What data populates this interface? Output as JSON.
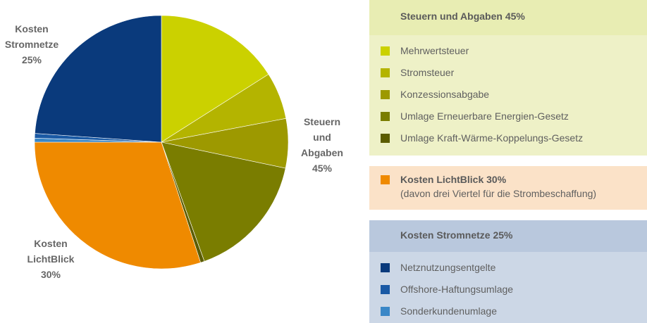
{
  "chart_data": {
    "type": "pie",
    "slices": [
      {
        "group": "tax",
        "value": 16.0,
        "color": "#cbd100"
      },
      {
        "group": "tax",
        "value": 6.0,
        "color": "#b4b400"
      },
      {
        "group": "tax",
        "value": 6.3,
        "color": "#9d9900"
      },
      {
        "group": "tax",
        "value": 16.2,
        "color": "#7a7d00"
      },
      {
        "group": "tax",
        "value": 0.5,
        "color": "#5b5c00"
      },
      {
        "group": "lb",
        "value": 30.0,
        "color": "#ef8a00"
      },
      {
        "group": "net",
        "value": 0.5,
        "color": "#3a87c7"
      },
      {
        "group": "net",
        "value": 0.6,
        "color": "#1a5aa5"
      },
      {
        "group": "net",
        "value": 23.9,
        "color": "#0a3a7c"
      }
    ],
    "labels": {
      "tax": "Steuern\nund\nAbgaben\n45%",
      "lb": "Kosten\nLichtBlick\n30%",
      "net": "Kosten\nStromnetze\n25%"
    }
  },
  "legend": {
    "tax": {
      "header": "Steuern und Abgaben 45%",
      "items": [
        {
          "label": "Mehrwertsteuer",
          "color": "#cbd100"
        },
        {
          "label": "Stromsteuer",
          "color": "#b4b400"
        },
        {
          "label": "Konzessionsabgabe",
          "color": "#9d9900"
        },
        {
          "label": "Umlage Erneuerbare Energien-Gesetz",
          "color": "#7a7d00"
        },
        {
          "label": "Umlage Kraft-Wärme-Koppelungs-Gesetz",
          "color": "#5b5c00"
        }
      ]
    },
    "lichtblick": {
      "title": "Kosten LichtBlick 30%",
      "note": "(davon drei Viertel für die Strombeschaffung)",
      "color": "#ef8a00"
    },
    "net": {
      "header": "Kosten Stromnetze 25%",
      "items": [
        {
          "label": "Netznutzungsentgelte",
          "color": "#0a3a7c"
        },
        {
          "label": "Offshore-Haftungsumlage",
          "color": "#1a5aa5"
        },
        {
          "label": "Sonderkundenumlage",
          "color": "#3a87c7"
        }
      ]
    }
  }
}
